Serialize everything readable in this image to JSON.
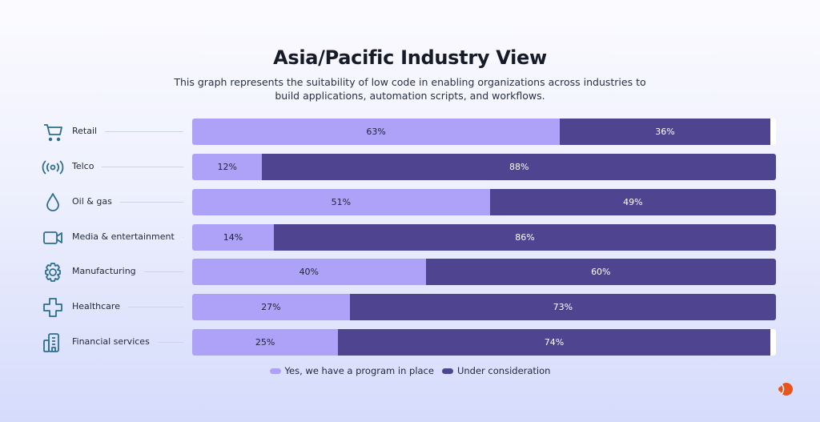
{
  "title": "Asia/Pacific Industry View",
  "subtitle": "This graph represents the suitability of low code in enabling organizations across industries to build applications, automation scripts, and workflows.",
  "colors": {
    "yes": "#aea2f8",
    "no": "#4f448f",
    "icons": "#2c6e8f",
    "logo": "#e8541e"
  },
  "chart_data": {
    "type": "bar",
    "orientation": "horizontal",
    "stacked": true,
    "title": "Asia/Pacific Industry View",
    "categories": [
      "Retail",
      "Telco",
      "Oil & gas",
      "Media & entertainment",
      "Manufacturing",
      "Healthcare",
      "Financial services"
    ],
    "icons": [
      "cart-icon",
      "signal-icon",
      "droplet-icon",
      "video-camera-icon",
      "gear-icon",
      "cross-icon",
      "building-icon"
    ],
    "series": [
      {
        "name": "Yes, we have a program in place",
        "values": [
          63,
          12,
          51,
          14,
          40,
          27,
          25
        ]
      },
      {
        "name": "Under consideration",
        "values": [
          36,
          88,
          49,
          86,
          60,
          73,
          74
        ]
      }
    ],
    "labels": [
      [
        "63%",
        "36%"
      ],
      [
        "12%",
        "88%"
      ],
      [
        "51%",
        "49%"
      ],
      [
        "14%",
        "86%"
      ],
      [
        "40%",
        "60%"
      ],
      [
        "27%",
        "73%"
      ],
      [
        "25%",
        "74%"
      ]
    ],
    "xlim": [
      0,
      100
    ],
    "grid": false,
    "legend": "bottom"
  }
}
